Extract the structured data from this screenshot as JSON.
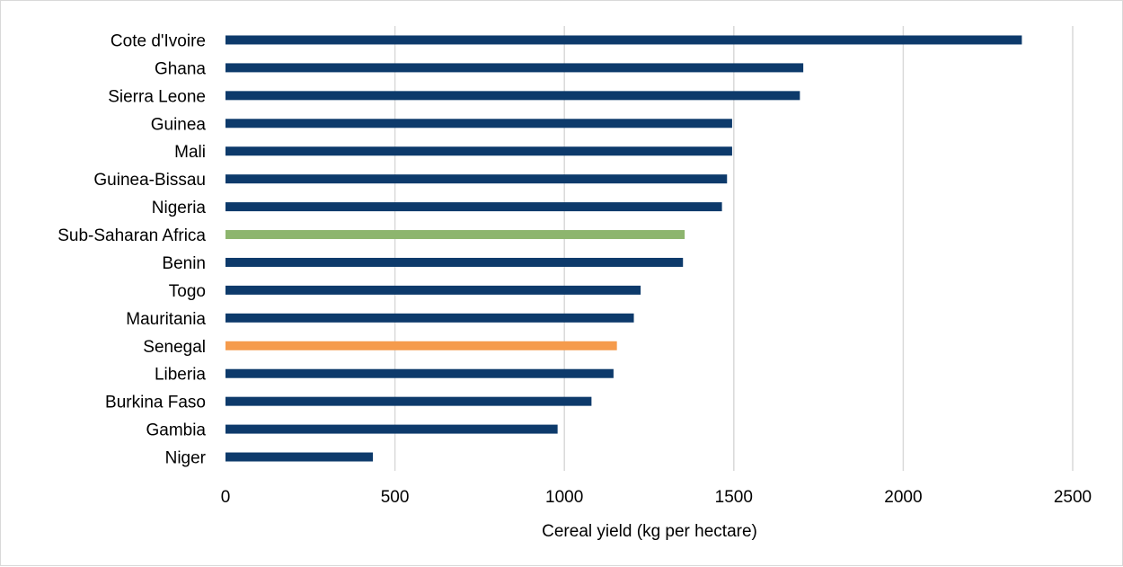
{
  "chart_data": {
    "type": "bar",
    "orientation": "horizontal",
    "title": "",
    "xlabel": "Cereal yield (kg per hectare)",
    "ylabel": "",
    "xlim": [
      0,
      2500
    ],
    "xticks": [
      "0",
      "500",
      "1000",
      "1500",
      "2000",
      "2500"
    ],
    "grid": "vertical",
    "legend": "none",
    "categories": [
      "Cote d'Ivoire",
      "Ghana",
      "Sierra Leone",
      "Guinea",
      "Mali",
      "Guinea-Bissau",
      "Nigeria",
      "Sub-Saharan Africa",
      "Benin",
      "Togo",
      "Mauritania",
      "Senegal",
      "Liberia",
      "Burkina Faso",
      "Gambia",
      "Niger"
    ],
    "values": [
      2350,
      1705,
      1695,
      1495,
      1495,
      1480,
      1465,
      1355,
      1350,
      1225,
      1205,
      1155,
      1145,
      1080,
      980,
      435
    ],
    "colors": {
      "default": "#0d3a6b",
      "Sub-Saharan Africa": "#8db56e",
      "Senegal": "#f59b4c"
    }
  }
}
